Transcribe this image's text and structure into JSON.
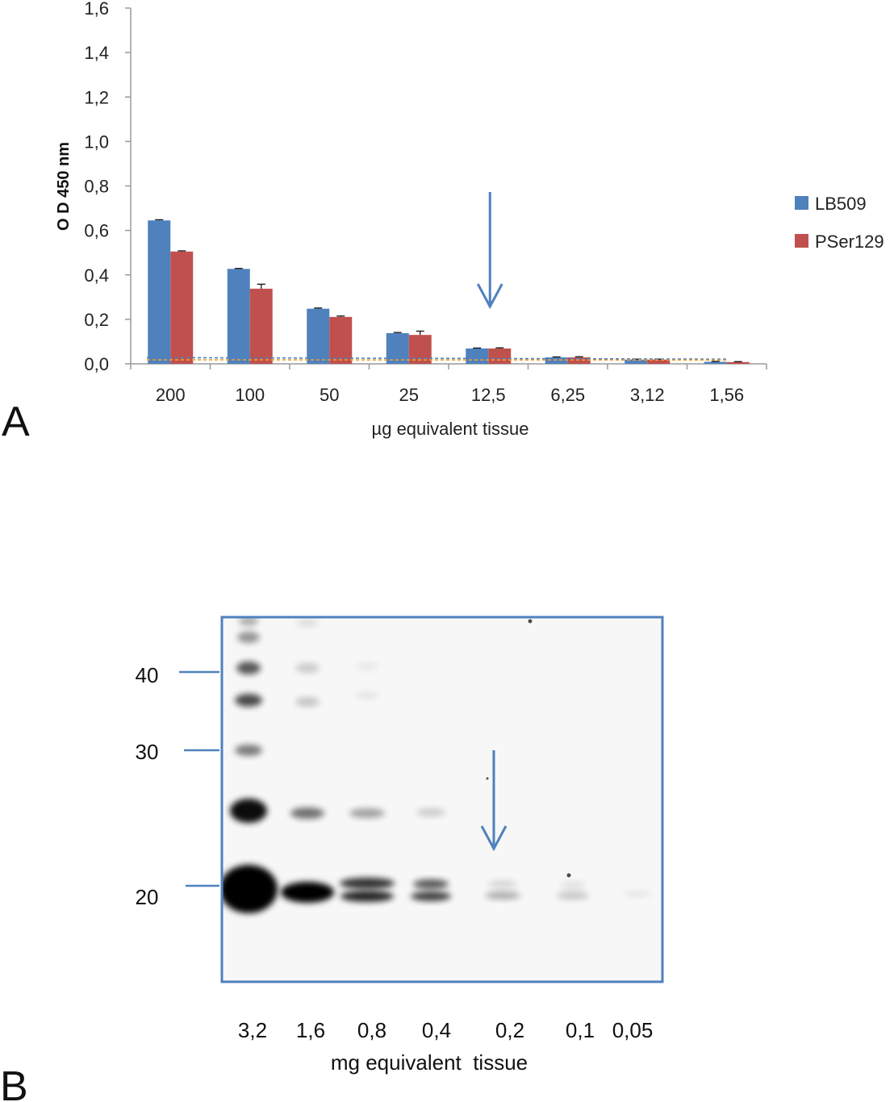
{
  "panel_a": {
    "letter": "A"
  },
  "panel_b": {
    "letter": "B",
    "mw_markers": [
      "40",
      "30",
      "20"
    ],
    "lanes": [
      "3,2",
      "1,6",
      "0,8",
      "0,4",
      "0,2",
      "0,1",
      "0,05"
    ],
    "xlabel": "mg equivalent  tissue",
    "band_color": "#000000",
    "frame_color": "#4f81bd"
  },
  "colors": {
    "LB509": "#4f81bd",
    "PSer129": "#c0504d",
    "arrow": "#4f81bd"
  },
  "chart_data": {
    "type": "bar",
    "title": "",
    "xlabel": "µg equivalent tissue",
    "ylabel": "O D 450 nm",
    "ylim": [
      0,
      1.6
    ],
    "yticks": [
      "0,0",
      "0,2",
      "0,4",
      "0,6",
      "0,8",
      "1,0",
      "1,2",
      "1,4",
      "1,6"
    ],
    "grid": false,
    "legend": "right",
    "categories": [
      "200",
      "100",
      "50",
      "25",
      "12,5",
      "6,25",
      "3,12",
      "1,56"
    ],
    "series": [
      {
        "name": "LB509",
        "values": [
          0.645,
          0.427,
          0.248,
          0.138,
          0.069,
          0.029,
          0.019,
          0.009
        ],
        "errors": [
          0.003,
          0.002,
          0.003,
          0.003,
          0.002,
          0.002,
          0.002,
          0.002
        ]
      },
      {
        "name": "PSer129",
        "values": [
          0.505,
          0.338,
          0.211,
          0.13,
          0.069,
          0.029,
          0.019,
          0.008
        ],
        "errors": [
          0.003,
          0.02,
          0.004,
          0.017,
          0.003,
          0.003,
          0.002,
          0.002
        ]
      }
    ],
    "cutoff_lines": [
      {
        "name": "LB509 cutoff",
        "values": [
          0.028,
          0.021
        ]
      },
      {
        "name": "PSer129 cutoff",
        "values": [
          0.018,
          0.017
        ]
      }
    ],
    "arrow_category": "12,5"
  }
}
